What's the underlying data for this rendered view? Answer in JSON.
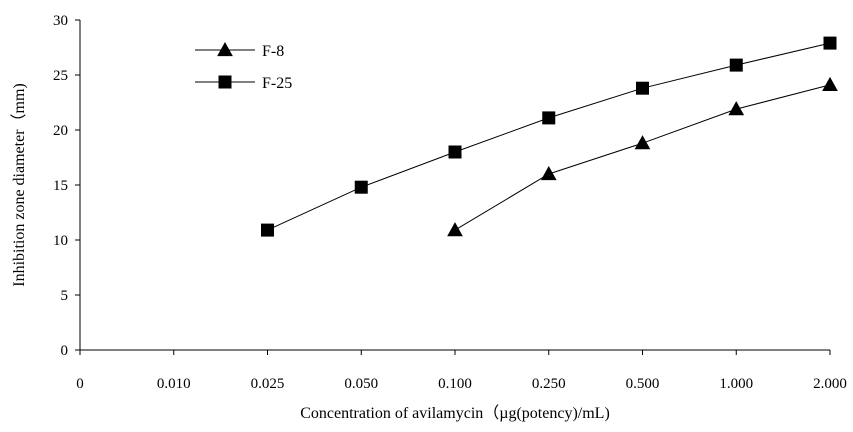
{
  "chart_data": {
    "type": "line",
    "title": "",
    "xlabel": "Concentration of avilamycin（µg(potency)/mL)",
    "ylabel": "Inhibition zone diameter（mm)",
    "categories": [
      "0",
      "0.010",
      "0.025",
      "0.050",
      "0.100",
      "0.250",
      "0.500",
      "1.000",
      "2.000"
    ],
    "yticks": [
      "0",
      "5",
      "10",
      "15",
      "20",
      "25",
      "30"
    ],
    "ylim": [
      0,
      30
    ],
    "grid": false,
    "legend_position": "top-left",
    "series": [
      {
        "name": "F-8",
        "marker": "triangle",
        "values": [
          null,
          null,
          null,
          null,
          10.9,
          16.0,
          18.8,
          21.9,
          24.1
        ]
      },
      {
        "name": "F-25",
        "marker": "square",
        "values": [
          null,
          null,
          10.9,
          14.8,
          18.0,
          21.1,
          23.8,
          25.9,
          27.9
        ]
      }
    ]
  }
}
